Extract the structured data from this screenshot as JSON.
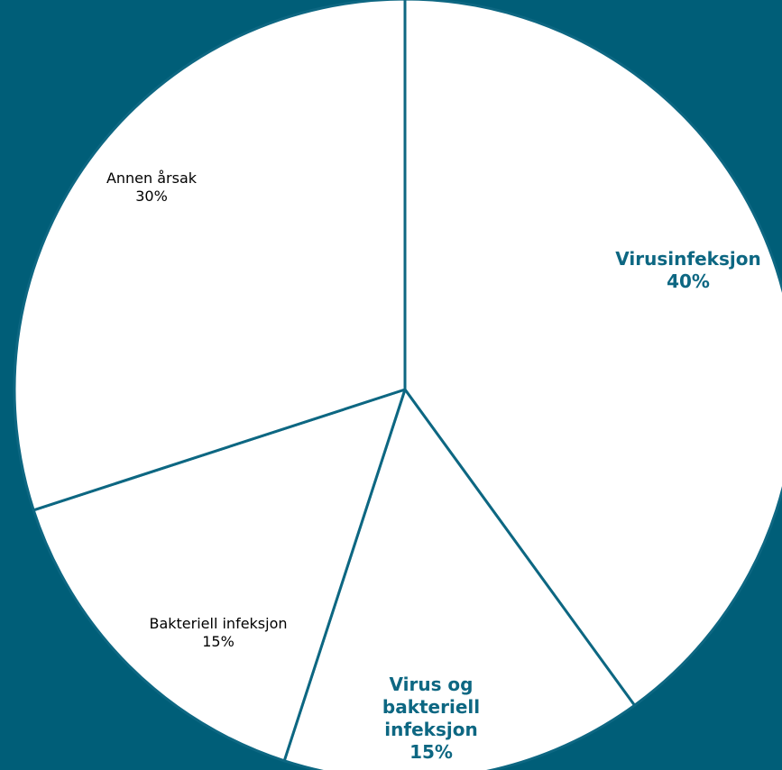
{
  "chart_data": {
    "type": "pie",
    "categories": [
      "Virusinfeksjon",
      "Virus og bakteriell infeksjon",
      "Bakteriell infeksjon",
      "Annen årsak"
    ],
    "values": [
      40,
      15,
      15,
      30
    ],
    "value_labels": [
      "40%",
      "15%",
      "15%",
      "30%"
    ],
    "color": "#ffffff",
    "stroke": "#0d6782"
  }
}
